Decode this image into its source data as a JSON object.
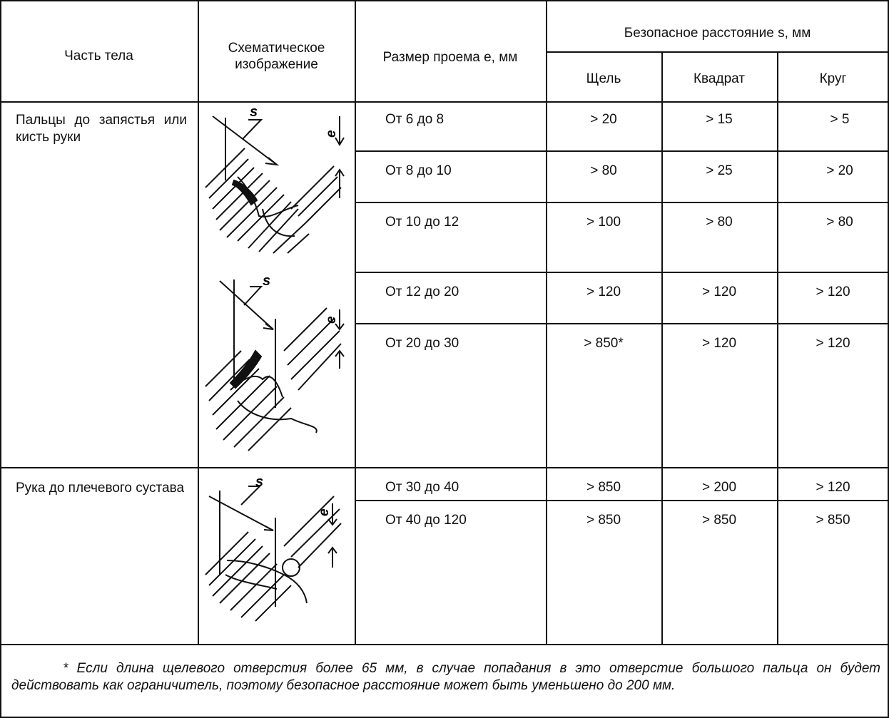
{
  "header": {
    "body_part": "Часть тела",
    "schematic": "Схематическое изображение",
    "opening_size": "Размер проема e, мм",
    "safe_distance": "Безопасное расстояние s, мм",
    "slot": "Щель",
    "square": "Квадрат",
    "circle": "Круг"
  },
  "groups": [
    {
      "body_part": "Пальцы до запястья или кисть руки"
    },
    {
      "body_part": "Рука до плечевого сустава"
    }
  ],
  "rows": [
    {
      "size": "От 6 до 8",
      "slot": "> 20",
      "square": "> 15",
      "circle": "> 5"
    },
    {
      "size": "От 8 до 10",
      "slot": "> 80",
      "square": "> 25",
      "circle": "> 20"
    },
    {
      "size": "От 10 до 12",
      "slot": "> 100",
      "square": "> 80",
      "circle": "> 80"
    },
    {
      "size": "От 12 до 20",
      "slot": "> 120",
      "square": "> 120",
      "circle": "> 120"
    },
    {
      "size": "От 20 до 30",
      "slot": "> 850*",
      "square": "> 120",
      "circle": "> 120"
    },
    {
      "size": "От 30 до 40",
      "slot": "> 850",
      "square": "> 200",
      "circle": "> 120"
    },
    {
      "size": "От 40 до 120",
      "slot": "> 850",
      "square": "> 850",
      "circle": "> 850"
    }
  ],
  "diagram_labels": {
    "s": "s",
    "e": "e"
  },
  "footnote": "* Если длина щелевого отверстия более 65 мм, в случае попадания в это отверстие большого пальца он будет действовать как ограничитель, поэтому безопасное расстояние может быть уменьшено до 200 мм."
}
